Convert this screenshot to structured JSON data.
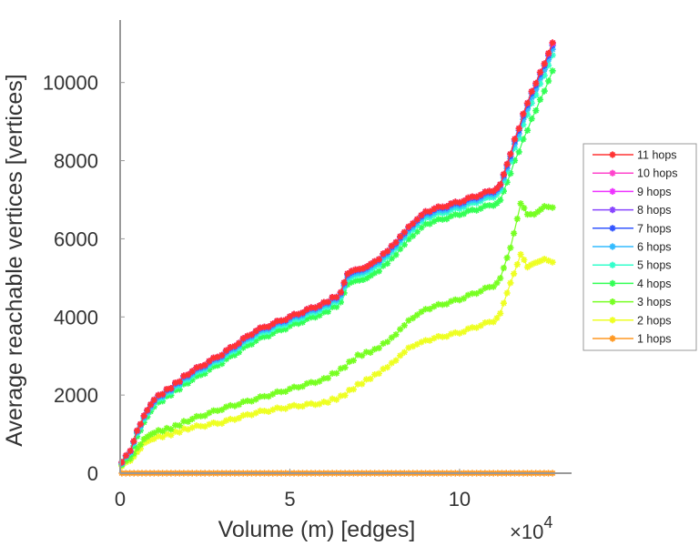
{
  "chart_data": {
    "type": "line",
    "title": "",
    "xlabel": "Volume (m) [edges]",
    "ylabel": "Average reachable vertices [vertices]",
    "x_multiplier_label": "×10",
    "x_multiplier_exponent": "4",
    "xlim": [
      0,
      13.3
    ],
    "ylim": [
      0,
      11600
    ],
    "xticks": [
      0,
      5,
      10
    ],
    "xtick_labels": [
      "0",
      "5",
      "10"
    ],
    "yticks": [
      0,
      2000,
      4000,
      6000,
      8000,
      10000
    ],
    "ytick_labels": [
      "0",
      "2000",
      "4000",
      "6000",
      "8000",
      "10000"
    ],
    "grid": false,
    "legend_position": "outside-right",
    "marker": "asterisk",
    "series": [
      {
        "name": "11 hops",
        "color": "#ff3333",
        "x": [
          0.05,
          0.3,
          0.5,
          0.7,
          1.0,
          1.5,
          2.0,
          3.0,
          4.0,
          5.0,
          6.0,
          6.5,
          6.7,
          7.5,
          8.0,
          8.5,
          9.0,
          10.0,
          11.0,
          11.2,
          11.5,
          12.0,
          12.5,
          12.74
        ],
        "y": [
          250,
          600,
          1100,
          1450,
          1900,
          2200,
          2550,
          3050,
          3650,
          4000,
          4350,
          4600,
          5100,
          5400,
          5800,
          6300,
          6700,
          6950,
          7250,
          7400,
          8200,
          9500,
          10500,
          11020
        ]
      },
      {
        "name": "10 hops",
        "color": "#ff44cc",
        "x": [
          0.05,
          0.3,
          0.5,
          0.7,
          1.0,
          1.5,
          2.0,
          3.0,
          4.0,
          5.0,
          6.0,
          6.5,
          6.7,
          7.5,
          8.0,
          8.5,
          9.0,
          10.0,
          11.0,
          11.2,
          11.5,
          12.0,
          12.5,
          12.74
        ],
        "y": [
          250,
          600,
          1100,
          1450,
          1900,
          2200,
          2550,
          3050,
          3650,
          4000,
          4350,
          4600,
          5100,
          5400,
          5800,
          6300,
          6700,
          6950,
          7250,
          7400,
          8200,
          9500,
          10500,
          11020
        ]
      },
      {
        "name": "9 hops",
        "color": "#ee33ff",
        "x": [
          0.05,
          0.3,
          0.5,
          0.7,
          1.0,
          1.5,
          2.0,
          3.0,
          4.0,
          5.0,
          6.0,
          6.5,
          6.7,
          7.5,
          8.0,
          8.5,
          9.0,
          10.0,
          11.0,
          11.2,
          11.5,
          12.0,
          12.5,
          12.74
        ],
        "y": [
          250,
          600,
          1100,
          1450,
          1900,
          2200,
          2550,
          3050,
          3650,
          4000,
          4350,
          4600,
          5100,
          5400,
          5800,
          6300,
          6700,
          6950,
          7250,
          7400,
          8200,
          9500,
          10500,
          11000
        ]
      },
      {
        "name": "8 hops",
        "color": "#8844ff",
        "x": [
          0.05,
          0.3,
          0.5,
          0.7,
          1.0,
          1.5,
          2.0,
          3.0,
          4.0,
          5.0,
          6.0,
          6.5,
          6.7,
          7.5,
          8.0,
          8.5,
          9.0,
          10.0,
          11.0,
          11.2,
          11.5,
          12.0,
          12.5,
          12.74
        ],
        "y": [
          250,
          600,
          1100,
          1450,
          1900,
          2200,
          2550,
          3050,
          3650,
          4000,
          4350,
          4600,
          5100,
          5400,
          5800,
          6300,
          6700,
          6950,
          7250,
          7400,
          8200,
          9500,
          10500,
          11000
        ]
      },
      {
        "name": "7 hops",
        "color": "#3355ff",
        "x": [
          0.05,
          0.3,
          0.5,
          0.7,
          1.0,
          1.5,
          2.0,
          3.0,
          4.0,
          5.0,
          6.0,
          6.5,
          6.7,
          7.5,
          8.0,
          8.5,
          9.0,
          10.0,
          11.0,
          11.2,
          11.5,
          12.0,
          12.5,
          12.74
        ],
        "y": [
          240,
          590,
          1090,
          1440,
          1880,
          2180,
          2530,
          3030,
          3630,
          3980,
          4330,
          4580,
          5070,
          5380,
          5770,
          6270,
          6670,
          6920,
          7220,
          7380,
          8150,
          9450,
          10450,
          10950
        ]
      },
      {
        "name": "6 hops",
        "color": "#33bbff",
        "x": [
          0.05,
          0.3,
          0.5,
          0.7,
          1.0,
          1.5,
          2.0,
          3.0,
          4.0,
          5.0,
          6.0,
          6.5,
          6.7,
          7.5,
          8.0,
          8.5,
          9.0,
          10.0,
          11.0,
          11.2,
          11.5,
          12.0,
          12.5,
          12.74
        ],
        "y": [
          230,
          570,
          1060,
          1400,
          1840,
          2140,
          2480,
          2980,
          3580,
          3930,
          4280,
          4530,
          5010,
          5320,
          5710,
          6210,
          6610,
          6860,
          7160,
          7320,
          8080,
          9350,
          10350,
          10850
        ]
      },
      {
        "name": "5 hops",
        "color": "#33ffcc",
        "x": [
          0.05,
          0.3,
          0.5,
          0.7,
          1.0,
          1.5,
          2.0,
          3.0,
          4.0,
          5.0,
          6.0,
          6.5,
          6.7,
          7.5,
          8.0,
          8.5,
          9.0,
          10.0,
          11.0,
          11.2,
          11.5,
          12.0,
          12.5,
          12.74
        ],
        "y": [
          220,
          550,
          1030,
          1360,
          1800,
          2100,
          2430,
          2930,
          3520,
          3870,
          4220,
          4470,
          4950,
          5250,
          5640,
          6140,
          6540,
          6790,
          7090,
          7250,
          8000,
          9200,
          10200,
          10700
        ]
      },
      {
        "name": "4 hops",
        "color": "#33ff55",
        "x": [
          0.05,
          0.3,
          0.5,
          0.7,
          1.0,
          1.5,
          2.0,
          3.0,
          4.0,
          5.0,
          6.0,
          6.5,
          6.7,
          7.5,
          8.0,
          8.5,
          9.0,
          10.0,
          11.0,
          11.2,
          11.5,
          12.0,
          12.5,
          12.74
        ],
        "y": [
          200,
          500,
          950,
          1280,
          1720,
          2020,
          2330,
          2830,
          3400,
          3760,
          4100,
          4350,
          4820,
          5100,
          5480,
          5980,
          6380,
          6630,
          6880,
          7000,
          7700,
          8800,
          9800,
          10300
        ]
      },
      {
        "name": "3 hops",
        "color": "#77ff22",
        "x": [
          0.05,
          0.3,
          0.5,
          0.7,
          1.0,
          1.5,
          2.0,
          3.0,
          4.0,
          5.0,
          6.0,
          6.5,
          7.0,
          7.5,
          8.0,
          8.5,
          9.0,
          10.0,
          11.0,
          11.2,
          11.5,
          11.8,
          12.0,
          12.2,
          12.5,
          12.74
        ],
        "y": [
          180,
          400,
          650,
          850,
          1050,
          1150,
          1350,
          1650,
          1900,
          2150,
          2400,
          2650,
          3000,
          3150,
          3450,
          3900,
          4200,
          4450,
          4800,
          5000,
          5800,
          6900,
          6650,
          6650,
          6850,
          6800
        ]
      },
      {
        "name": "2 hops",
        "color": "#eeff22",
        "x": [
          0.05,
          0.3,
          0.5,
          0.7,
          1.0,
          1.5,
          2.0,
          3.0,
          4.0,
          5.0,
          6.0,
          6.5,
          7.0,
          7.5,
          8.0,
          8.5,
          9.0,
          10.0,
          11.0,
          11.2,
          11.5,
          11.8,
          12.0,
          12.2,
          12.5,
          12.74
        ],
        "y": [
          150,
          350,
          550,
          750,
          900,
          1000,
          1150,
          1300,
          1550,
          1700,
          1800,
          1950,
          2250,
          2500,
          2800,
          3200,
          3400,
          3600,
          3900,
          4100,
          4900,
          5600,
          5300,
          5400,
          5500,
          5400
        ]
      },
      {
        "name": "1 hops",
        "color": "#ff9922",
        "x": [
          0.05,
          1.0,
          2.0,
          3.0,
          4.0,
          5.0,
          6.0,
          7.0,
          8.0,
          9.0,
          10.0,
          11.0,
          12.0,
          12.74
        ],
        "y": [
          0,
          0,
          0,
          0,
          0,
          0,
          0,
          0,
          0,
          0,
          0,
          0,
          0,
          0
        ]
      }
    ]
  }
}
